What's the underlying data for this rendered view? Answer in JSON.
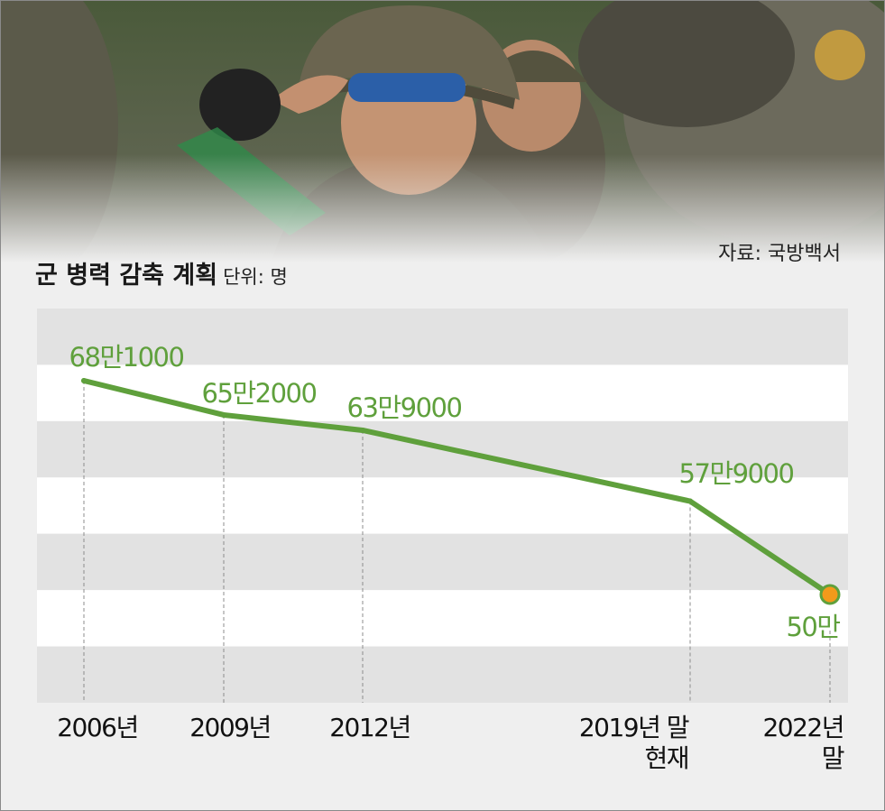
{
  "source": "자료: 국방백서",
  "chart_data": {
    "type": "line",
    "title": "군 병력 감축 계획",
    "unit": "단위: 명",
    "categories": [
      "2006년",
      "2009년",
      "2012년",
      "2019년 말\n현재",
      "2022년\n말"
    ],
    "series": [
      {
        "values": [
          681000,
          652000,
          639000,
          579000,
          500000
        ],
        "labels": [
          "68만1000",
          "65만2000",
          "63만9000",
          "57만9000",
          "50만"
        ]
      }
    ],
    "highlight_last_point": true,
    "grid": "alternating horizontal bands",
    "colors": {
      "line": "#5fa03c",
      "highlight": "#f39a1b",
      "band": "#e2e2e2",
      "background": "#efefef"
    }
  }
}
